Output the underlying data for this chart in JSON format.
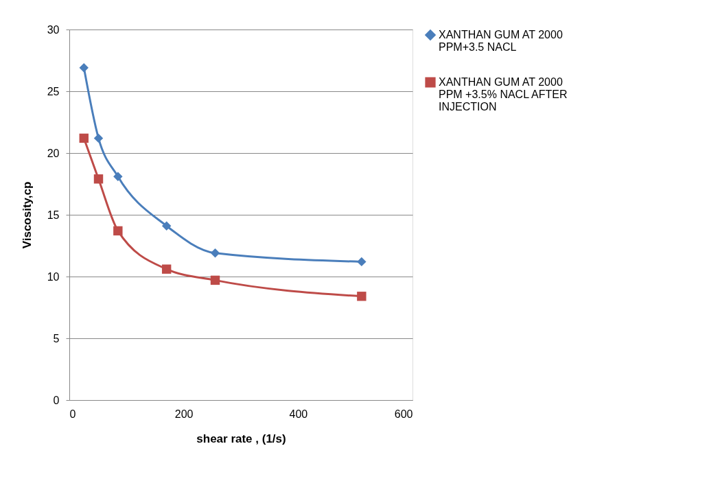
{
  "chart_data": {
    "type": "line",
    "xlabel": "shear rate , (1/s)",
    "ylabel": "Viscosity,cp",
    "x": [
      25.5,
      51,
      85,
      170,
      255,
      511
    ],
    "series": [
      {
        "name": "XANTHAN GUM AT 2000 PPM+3.5 NACL",
        "color": "#4a7ebb",
        "marker": "diamond",
        "values": [
          26.9,
          21.2,
          18.1,
          14.1,
          11.9,
          11.2
        ]
      },
      {
        "name": "XANTHAN GUM AT 2000 PPM +3.5% NACL AFTER INJECTION",
        "color": "#be4b48",
        "marker": "square",
        "values": [
          21.2,
          17.9,
          13.7,
          10.6,
          9.7,
          8.4
        ]
      }
    ],
    "xlim": [
      0,
      600
    ],
    "xticks": [
      0,
      200,
      400,
      600
    ],
    "ylim": [
      0,
      30
    ],
    "yticks": [
      0,
      5,
      10,
      15,
      20,
      25,
      30
    ],
    "grid": "y",
    "legend": "right"
  }
}
